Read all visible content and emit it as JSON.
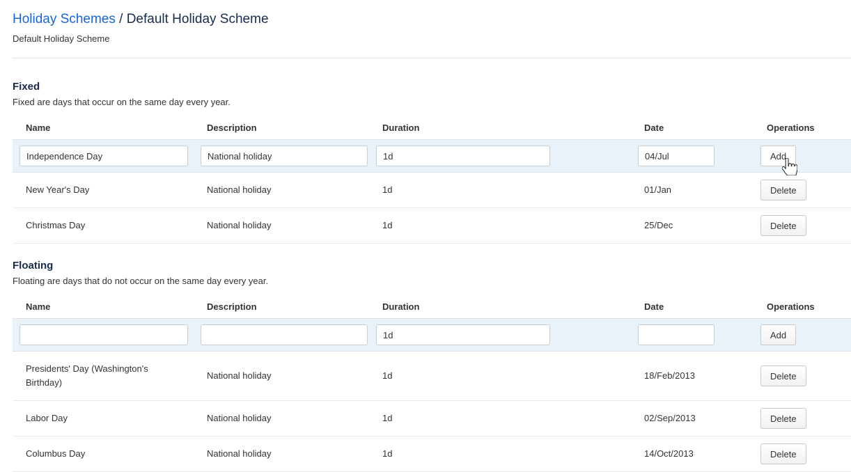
{
  "breadcrumb": {
    "link": "Holiday Schemes",
    "separator": "/",
    "current": "Default Holiday Scheme"
  },
  "subtitle": "Default Holiday Scheme",
  "colors": {
    "link": "#1765dd",
    "heading": "#172b4d",
    "row_highlight": "#e9f1f9"
  },
  "columns": [
    "Name",
    "Description",
    "Duration",
    "Date",
    "Operations"
  ],
  "sections": [
    {
      "id": "fixed",
      "title": "Fixed",
      "description": "Fixed are days that occur on the same day every year.",
      "add_row": {
        "name": "Independence Day",
        "description": "National holiday",
        "duration": "1d",
        "date": "04/Jul",
        "button": "Add",
        "hovered": true
      },
      "rows": [
        {
          "name": "New Year's Day",
          "description": "National holiday",
          "duration": "1d",
          "date": "01/Jan",
          "button": "Delete"
        },
        {
          "name": "Christmas Day",
          "description": "National holiday",
          "duration": "1d",
          "date": "25/Dec",
          "button": "Delete"
        }
      ]
    },
    {
      "id": "floating",
      "title": "Floating",
      "description": "Floating are days that do not occur on the same day every year.",
      "add_row": {
        "name": "",
        "description": "",
        "duration": "1d",
        "date": "",
        "button": "Add",
        "hovered": false
      },
      "rows": [
        {
          "name": "Presidents' Day (Washington's Birthday)",
          "description": "National holiday",
          "duration": "1d",
          "date": "18/Feb/2013",
          "button": "Delete"
        },
        {
          "name": "Labor Day",
          "description": "National holiday",
          "duration": "1d",
          "date": "02/Sep/2013",
          "button": "Delete"
        },
        {
          "name": "Columbus Day",
          "description": "National holiday",
          "duration": "1d",
          "date": "14/Oct/2013",
          "button": "Delete"
        }
      ]
    }
  ]
}
